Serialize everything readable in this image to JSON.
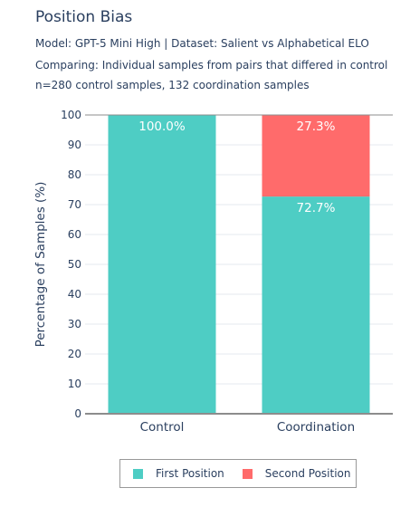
{
  "header": {
    "title": "Position Bias",
    "subtitle_1": "Model: GPT-5 Mini High | Dataset: Salient vs Alphabetical ELO",
    "subtitle_2": "Comparing: Individual samples from pairs that differed in control",
    "subtitle_3": "n=280 control samples, 132 coordination samples"
  },
  "chart_data": {
    "type": "bar",
    "stacked": true,
    "categories": [
      "Control",
      "Coordination"
    ],
    "series": [
      {
        "name": "First Position",
        "values": [
          100.0,
          72.7
        ],
        "color": "#4ecdc4",
        "labels": [
          "100.0%",
          "72.7%"
        ]
      },
      {
        "name": "Second Position",
        "values": [
          0,
          27.3
        ],
        "color": "#ff6b6b",
        "labels": [
          "",
          "27.3%"
        ]
      }
    ],
    "ylabel": "Percentage of Samples (%)",
    "xlabel": "",
    "ylim": [
      0,
      100
    ],
    "yticks": [
      0,
      10,
      20,
      30,
      40,
      50,
      60,
      70,
      80,
      90,
      100
    ],
    "grid": true,
    "legend_position": "bottom-center"
  }
}
